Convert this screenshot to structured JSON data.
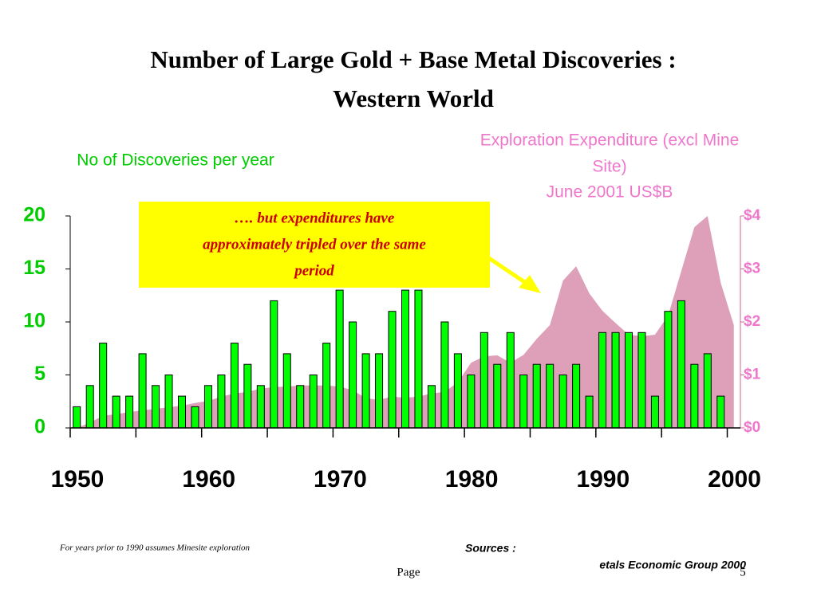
{
  "chart_data": {
    "type": "bar",
    "title": [
      "Number of Large Gold + Base Metal Discoveries :",
      "Western World"
    ],
    "xticks": [
      1950,
      1960,
      1970,
      1980,
      1990,
      2000
    ],
    "xminorticks": [
      1955,
      1965,
      1975,
      1985,
      1995
    ],
    "xlim": [
      1950,
      2001
    ],
    "ylim": [
      0,
      20
    ],
    "yticks": [
      0,
      5,
      10,
      15,
      20
    ],
    "y2lim": [
      0,
      4
    ],
    "y2ticks": [
      {
        "value": 0,
        "label": "$0"
      },
      {
        "value": 1,
        "label": "$1"
      },
      {
        "value": 2,
        "label": "$2"
      },
      {
        "value": 3,
        "label": "$3"
      },
      {
        "value": 4,
        "label": "$4"
      }
    ],
    "series": [
      {
        "name": "No of Discoveries per year",
        "type": "bar",
        "color": "#00ff00",
        "x": [
          1950,
          1951,
          1952,
          1953,
          1954,
          1955,
          1956,
          1957,
          1958,
          1959,
          1960,
          1961,
          1962,
          1963,
          1964,
          1965,
          1966,
          1967,
          1968,
          1969,
          1970,
          1971,
          1972,
          1973,
          1974,
          1975,
          1976,
          1977,
          1978,
          1979,
          1980,
          1981,
          1982,
          1983,
          1984,
          1985,
          1986,
          1987,
          1988,
          1989,
          1990,
          1991,
          1992,
          1993,
          1994,
          1995,
          1996,
          1997,
          1998,
          1999
        ],
        "values": [
          2,
          4,
          8,
          3,
          3,
          7,
          4,
          5,
          3,
          2,
          4,
          5,
          8,
          6,
          4,
          12,
          7,
          4,
          5,
          8,
          13,
          10,
          7,
          7,
          11,
          13,
          13,
          4,
          10,
          7,
          5,
          9,
          6,
          9,
          5,
          6,
          6,
          5,
          6,
          3,
          9,
          9,
          9,
          9,
          3,
          11,
          12,
          6,
          7,
          3
        ]
      },
      {
        "name": [
          "Exploration Expenditure (excl Mine",
          "Site)",
          "June 2001 US$B"
        ],
        "type": "area",
        "axis": "y2",
        "color": "#dda0b8",
        "x": [
          1950,
          1951,
          1952,
          1953,
          1954,
          1955,
          1956,
          1957,
          1958,
          1959,
          1960,
          1961,
          1962,
          1963,
          1964,
          1965,
          1966,
          1967,
          1968,
          1969,
          1970,
          1971,
          1972,
          1973,
          1974,
          1975,
          1976,
          1977,
          1978,
          1979,
          1980,
          1981,
          1982,
          1983,
          1984,
          1985,
          1986,
          1987,
          1988,
          1989,
          1990,
          1991,
          1992,
          1993,
          1994,
          1995,
          1996,
          1997,
          1998,
          1999,
          2000
        ],
        "values": [
          0,
          0.1,
          0.23,
          0.26,
          0.3,
          0.33,
          0.36,
          0.39,
          0.42,
          0.47,
          0.51,
          0.59,
          0.65,
          0.68,
          0.74,
          0.77,
          0.78,
          0.8,
          0.8,
          0.8,
          0.78,
          0.71,
          0.56,
          0.53,
          0.59,
          0.57,
          0.59,
          0.65,
          0.68,
          0.86,
          1.23,
          1.35,
          1.37,
          1.23,
          1.38,
          1.68,
          1.94,
          2.78,
          3.05,
          2.54,
          2.21,
          1.98,
          1.76,
          1.73,
          1.76,
          2.12,
          2.96,
          3.79,
          4.0,
          2.74,
          1.94
        ]
      }
    ],
    "annotation": [
      "…. but expenditures have",
      "approximately tripled over the same",
      "period"
    ],
    "footnote": "For years prior to 1990 assumes Minesite exploration",
    "sources": [
      "Sources :",
      "etals Economic Group 2000"
    ],
    "page": [
      "Page",
      "5"
    ]
  }
}
